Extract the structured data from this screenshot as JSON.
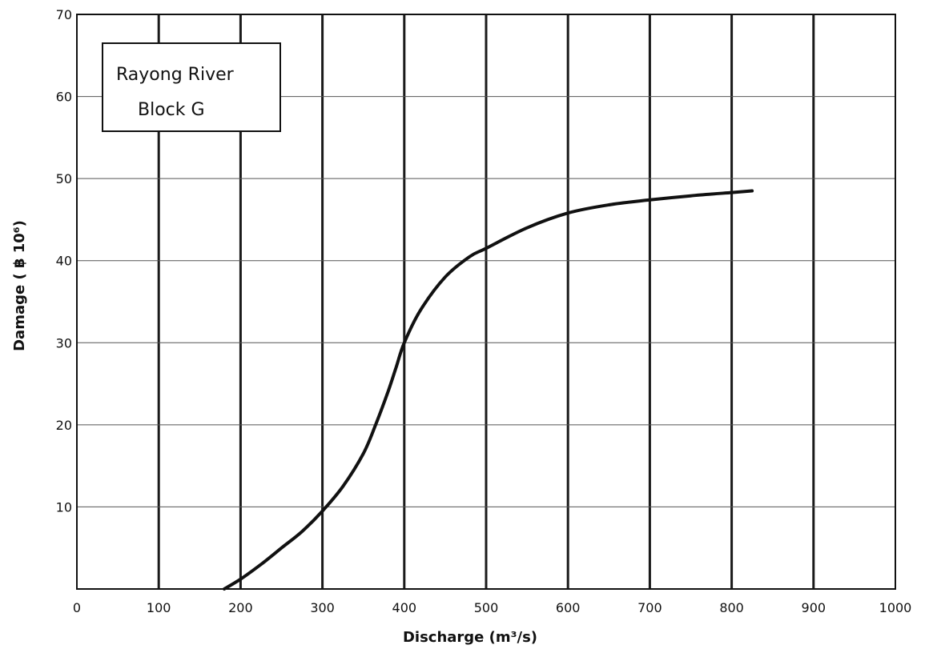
{
  "chart_data": {
    "type": "line",
    "title": "",
    "legend_lines": [
      "Rayong   River",
      "Block   G"
    ],
    "legend_placement": "top-left",
    "xlabel": "Discharge   (m³/s)",
    "ylabel": "Damage   ( ฿ 10⁶)",
    "xlim": [
      0,
      1000
    ],
    "ylim": [
      0,
      70
    ],
    "grid": true,
    "x_ticks": [
      0,
      100,
      200,
      300,
      400,
      500,
      600,
      700,
      800,
      900,
      1000
    ],
    "y_ticks": [
      10,
      20,
      30,
      40,
      50,
      60,
      70
    ],
    "x_tick_labels": [
      "0",
      "100",
      "200",
      "300",
      "400",
      "500",
      "600",
      "700",
      "800",
      "900",
      "1000"
    ],
    "y_tick_labels": [
      "10",
      "20",
      "30",
      "40",
      "50",
      "60",
      "70"
    ],
    "line_color": "#111111",
    "series": [
      {
        "x": [
          180,
          200,
          225,
          250,
          275,
          300,
          325,
          350,
          365,
          380,
          390,
          400,
          420,
          450,
          480,
          500,
          550,
          600,
          650,
          700,
          750,
          800,
          825
        ],
        "values": [
          0,
          1.2,
          3,
          5,
          7,
          9.5,
          12.5,
          16.5,
          20,
          24,
          27,
          30,
          34,
          38,
          40.5,
          41.5,
          44,
          45.8,
          46.8,
          47.4,
          47.9,
          48.3,
          48.5
        ]
      }
    ]
  }
}
